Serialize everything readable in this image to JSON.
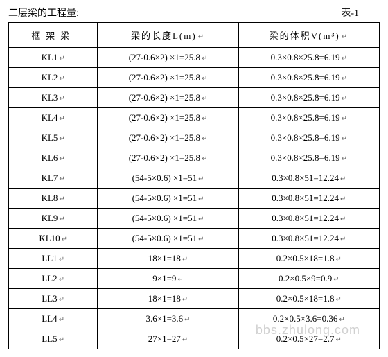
{
  "header": {
    "title": "二层梁的工程量:",
    "table_num": "表-1"
  },
  "table": {
    "columns": [
      "框架梁",
      "梁的长度L(m)",
      "梁的体积V(m³)"
    ],
    "col_widths": [
      "24%",
      "38%",
      "38%"
    ],
    "rows": [
      [
        "KL1",
        "(27-0.6×2) ×1=25.8",
        "0.3×0.8×25.8=6.19"
      ],
      [
        "KL2",
        "(27-0.6×2) ×1=25.8",
        "0.3×0.8×25.8=6.19"
      ],
      [
        "KL3",
        "(27-0.6×2) ×1=25.8",
        "0.3×0.8×25.8=6.19"
      ],
      [
        "KL4",
        "(27-0.6×2) ×1=25.8",
        "0.3×0.8×25.8=6.19"
      ],
      [
        "KL5",
        "(27-0.6×2) ×1=25.8",
        "0.3×0.8×25.8=6.19"
      ],
      [
        "KL6",
        "(27-0.6×2) ×1=25.8",
        "0.3×0.8×25.8=6.19"
      ],
      [
        "KL7",
        "(54-5×0.6) ×1=51",
        "0.3×0.8×51=12.24"
      ],
      [
        "KL8",
        "(54-5×0.6) ×1=51",
        "0.3×0.8×51=12.24"
      ],
      [
        "KL9",
        "(54-5×0.6) ×1=51",
        "0.3×0.8×51=12.24"
      ],
      [
        "KL10",
        "(54-5×0.6) ×1=51",
        "0.3×0.8×51=12.24"
      ],
      [
        "LL1",
        "18×1=18",
        "0.2×0.5×18=1.8"
      ],
      [
        "LL2",
        "9×1=9",
        "0.2×0.5×9=0.9"
      ],
      [
        "LL3",
        "18×1=18",
        "0.2×0.5×18=1.8"
      ],
      [
        "LL4",
        "3.6×1=3.6",
        "0.2×0.5×3.6=0.36"
      ],
      [
        "LL5",
        "27×1=27",
        "0.2×0.5×27=2.7"
      ]
    ]
  },
  "return_mark": "↵",
  "watermark": "bbs.zhulong.com",
  "styles": {
    "font_family": "SimSun",
    "body_width": 560,
    "font_size_header": 14,
    "font_size_cell": 13,
    "border_color": "#000000",
    "text_color": "#000000",
    "background_color": "#ffffff",
    "watermark_color": "rgba(120,120,120,0.35)"
  }
}
